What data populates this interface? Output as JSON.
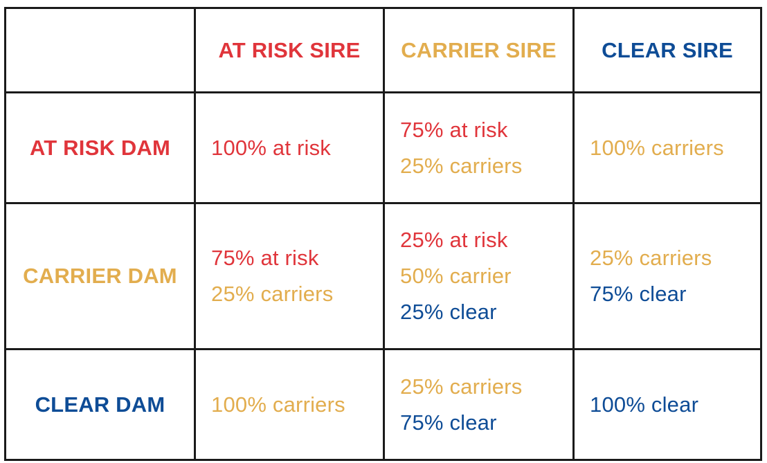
{
  "colors": {
    "at_risk": "#e0353b",
    "carrier": "#e2ad4e",
    "clear": "#0e4c96",
    "border": "#1a1a1a"
  },
  "columns": [
    {
      "label": "",
      "kind": ""
    },
    {
      "label": "AT RISK SIRE",
      "kind": "at_risk"
    },
    {
      "label": "CARRIER SIRE",
      "kind": "carrier"
    },
    {
      "label": "CLEAR SIRE",
      "kind": "clear"
    }
  ],
  "rows": [
    {
      "label": "AT RISK DAM",
      "kind": "at_risk",
      "cells": [
        [
          {
            "text": "100% at risk",
            "kind": "at_risk"
          }
        ],
        [
          {
            "text": "75% at risk",
            "kind": "at_risk"
          },
          {
            "text": "25% carriers",
            "kind": "carrier"
          }
        ],
        [
          {
            "text": "100% carriers",
            "kind": "carrier"
          }
        ]
      ]
    },
    {
      "label": "CARRIER DAM",
      "kind": "carrier",
      "cells": [
        [
          {
            "text": "75% at risk",
            "kind": "at_risk"
          },
          {
            "text": "25% carriers",
            "kind": "carrier"
          }
        ],
        [
          {
            "text": "25% at risk",
            "kind": "at_risk"
          },
          {
            "text": "50% carrier",
            "kind": "carrier"
          },
          {
            "text": "25% clear",
            "kind": "clear"
          }
        ],
        [
          {
            "text": "25% carriers",
            "kind": "carrier"
          },
          {
            "text": "75% clear",
            "kind": "clear"
          }
        ]
      ]
    },
    {
      "label": "CLEAR DAM",
      "kind": "clear",
      "cells": [
        [
          {
            "text": "100% carriers",
            "kind": "carrier"
          }
        ],
        [
          {
            "text": "25% carriers",
            "kind": "carrier"
          },
          {
            "text": "75% clear",
            "kind": "clear"
          }
        ],
        [
          {
            "text": "100% clear",
            "kind": "clear"
          }
        ]
      ]
    }
  ]
}
